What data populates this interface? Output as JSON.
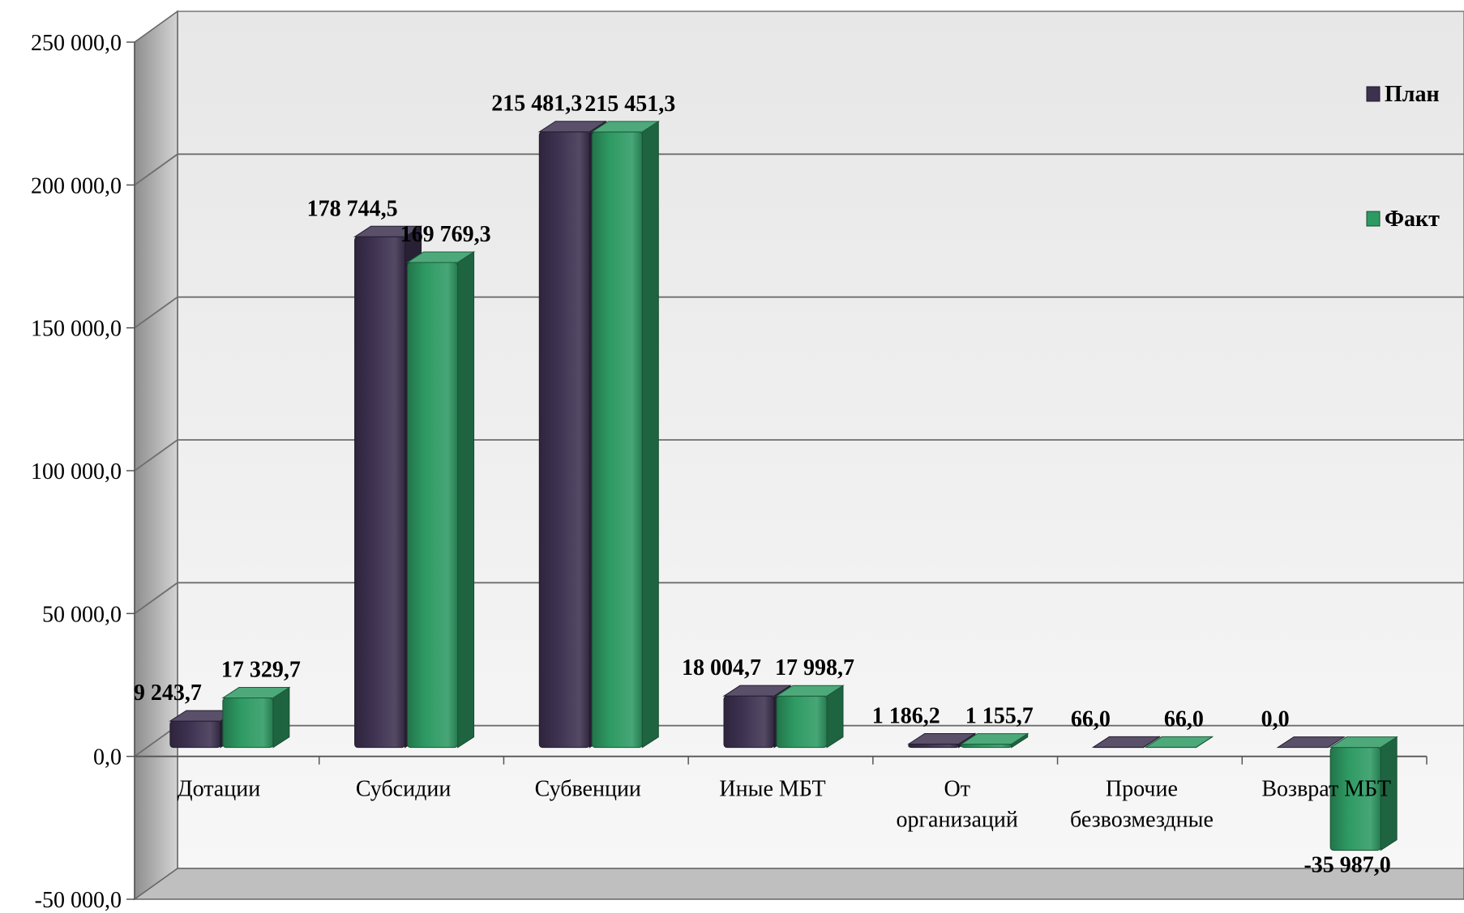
{
  "chart_data": {
    "type": "bar",
    "categories": [
      [
        "Дотации"
      ],
      [
        "Субсидии"
      ],
      [
        "Субвенции"
      ],
      [
        "Иные МБТ"
      ],
      [
        "От",
        "организаций"
      ],
      [
        "Прочие",
        "безвозмездные"
      ],
      [
        "Возврат МБТ"
      ]
    ],
    "series": [
      {
        "name": "План",
        "color": "#3d3150",
        "values": [
          9243.7,
          178744.5,
          215481.3,
          18004.7,
          1186.2,
          66.0,
          0.0
        ],
        "labels": [
          "9 243,7",
          "178 744,5",
          "215 481,3",
          "18 004,7",
          "1 186,2",
          "66,0",
          "0,0"
        ]
      },
      {
        "name": "Факт",
        "color": "#2e9a63",
        "values": [
          17329.7,
          169769.3,
          215451.3,
          17998.7,
          1155.7,
          66.0,
          -35987.0
        ],
        "labels": [
          "17 329,7",
          "169 769,3",
          "215 451,3",
          "17 998,7",
          "1 155,7",
          "66,0",
          "-35 987,0"
        ]
      }
    ],
    "yticks": [
      "250 000,0",
      "200 000,0",
      "150 000,0",
      "100 000,0",
      "50 000,0",
      "0,0",
      "-50 000,0"
    ],
    "ylim": [
      -50000,
      250000
    ],
    "grid": true,
    "legend_position": "right",
    "three_d": true
  }
}
